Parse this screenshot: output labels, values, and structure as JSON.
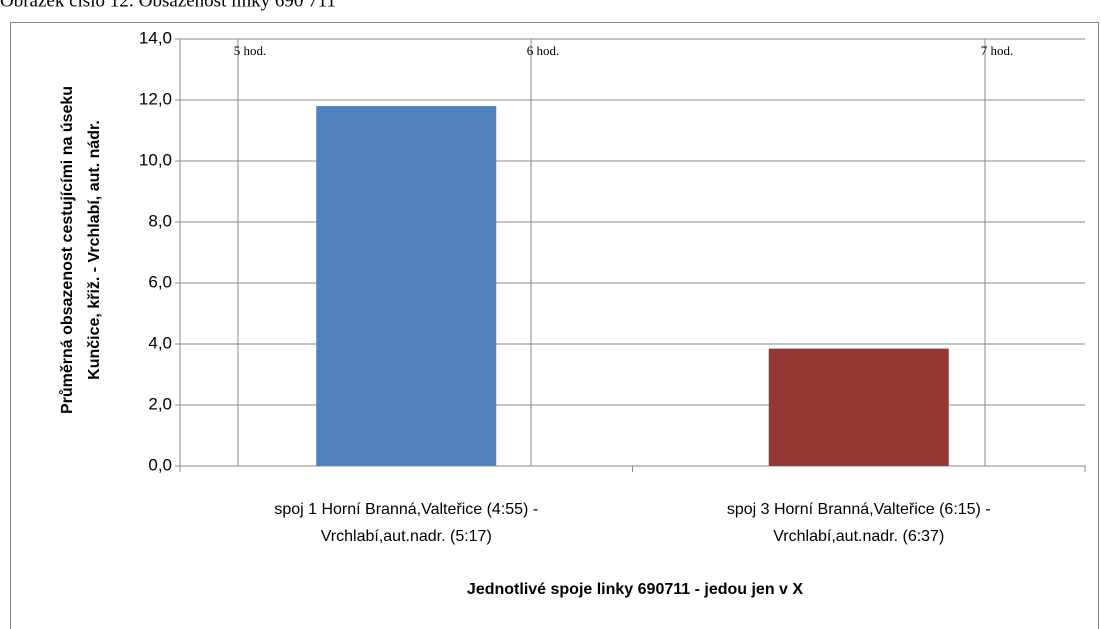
{
  "caption": "Obrázek číslo 12: Obsazenost linky 690 711",
  "chart_data": {
    "type": "bar",
    "categories": [
      [
        "spoj 1 Horní Branná,Valteřice (4:55) -",
        "Vrchlabí,aut.nadr. (5:17)"
      ],
      [
        "spoj 3 Horní Branná,Valteřice (6:15) -",
        "Vrchlabí,aut.nadr. (6:37)"
      ]
    ],
    "values": [
      11.8,
      3.85
    ],
    "colors": [
      "#4f81bd",
      "#953735"
    ],
    "ylim": [
      0,
      14
    ],
    "yticks": [
      {
        "value": 0,
        "label": "0,0"
      },
      {
        "value": 2,
        "label": "2,0"
      },
      {
        "value": 4,
        "label": "4,0"
      },
      {
        "value": 6,
        "label": "6,0"
      },
      {
        "value": 8,
        "label": "8,0"
      },
      {
        "value": 10,
        "label": "10,0"
      },
      {
        "value": 12,
        "label": "12,0"
      },
      {
        "value": 14,
        "label": "14,0"
      }
    ],
    "grid": true,
    "y_label": [
      "Průměrná obsazenost cestujícími na úseku",
      "Kunčice, křiž. - Vrchlabí, aut. nádr."
    ],
    "x_label": "Jednotlivé spoje linky 690711 - jedou jen v X",
    "annotations": [
      "5 hod.",
      "6 hod.",
      "7 hod."
    ]
  }
}
